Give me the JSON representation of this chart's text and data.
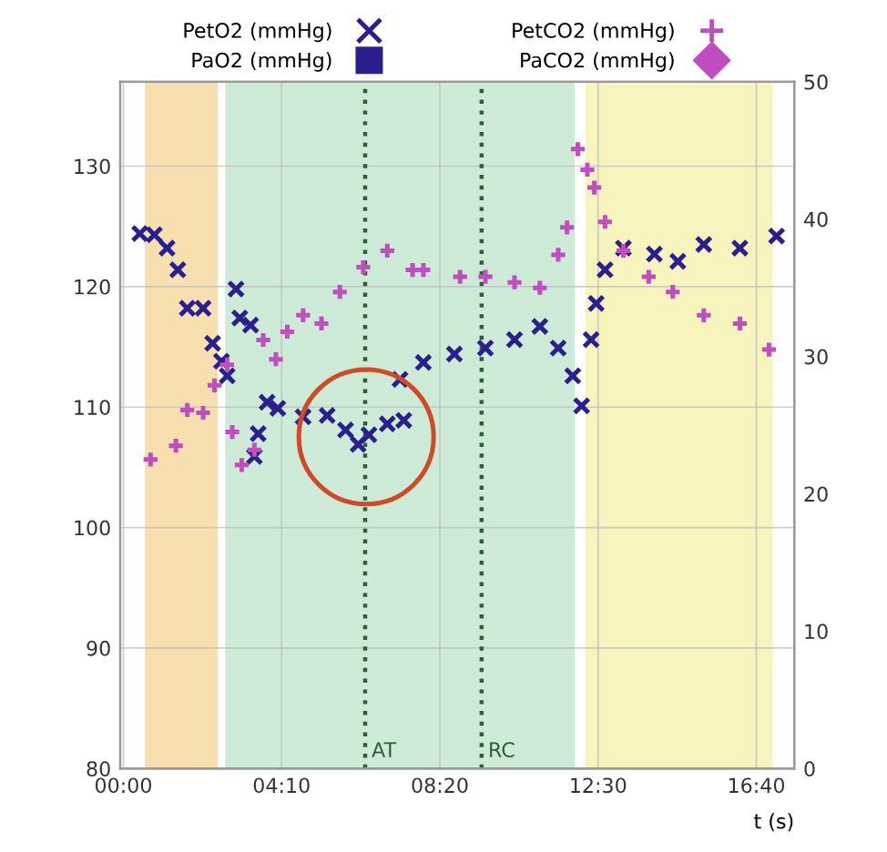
{
  "chart_data": {
    "type": "scatter",
    "xlabel": "t (s)",
    "legend": "top",
    "grid": true,
    "xlim": [
      -5,
      1060
    ],
    "xticks": [
      {
        "value": 0,
        "label": "00:00"
      },
      {
        "value": 250,
        "label": "04:10"
      },
      {
        "value": 500,
        "label": "08:20"
      },
      {
        "value": 750,
        "label": "12:30"
      },
      {
        "value": 1000,
        "label": "16:40"
      }
    ],
    "ylim": [
      80,
      137
    ],
    "yticks": [
      80,
      90,
      100,
      110,
      120,
      130
    ],
    "y2lim": [
      0,
      50
    ],
    "y2ticks": [
      0,
      10,
      20,
      30,
      40,
      50
    ],
    "series": [
      {
        "name": "PetO2 (mmHg)",
        "color": "#2a1f8f",
        "marker": "cross",
        "x": [
          26,
          49,
          69,
          86,
          101,
          126,
          141,
          155,
          164,
          178,
          184,
          201,
          207,
          213,
          227,
          244,
          284,
          322,
          351,
          371,
          388,
          417,
          443,
          437,
          474,
          523,
          572,
          618,
          658,
          687,
          710,
          724,
          739,
          747,
          761,
          790,
          839,
          876,
          917,
          974,
          1032
        ],
        "values": [
          124.4,
          124.3,
          123.2,
          121.4,
          118.2,
          118.2,
          115.3,
          113.8,
          112.6,
          119.8,
          117.4,
          116.8,
          105.9,
          107.8,
          110.4,
          109.9,
          109.2,
          109.3,
          108.1,
          106.9,
          107.7,
          108.6,
          108.9,
          112.3,
          113.7,
          114.4,
          114.9,
          115.6,
          116.7,
          114.9,
          112.6,
          110.1,
          115.6,
          118.6,
          121.4,
          123.2,
          122.7,
          122.1,
          123.5,
          123.2,
          124.2
        ]
      },
      {
        "name": "PaO2 (mmHg)",
        "color": "#2a1f8f",
        "marker": "square"
      },
      {
        "name": "PetCO2 (mmHg)",
        "color": "#c04ec0",
        "marker": "plus",
        "axis": "y2",
        "x": [
          43,
          83,
          101,
          126,
          144,
          164,
          172,
          187,
          207,
          221,
          241,
          259,
          284,
          313,
          342,
          379,
          417,
          457,
          474,
          532,
          572,
          618,
          658,
          687,
          701,
          718,
          733,
          744,
          761,
          790,
          830,
          868,
          917,
          974,
          1020
        ],
        "values": [
          22.5,
          23.5,
          26.1,
          25.9,
          27.9,
          29.4,
          24.5,
          22.1,
          23.2,
          31.2,
          29.8,
          31.8,
          33.0,
          32.4,
          34.7,
          36.5,
          37.7,
          36.3,
          36.3,
          35.8,
          35.8,
          35.4,
          35.0,
          37.4,
          39.4,
          45.1,
          43.6,
          42.3,
          39.8,
          37.7,
          35.8,
          34.7,
          33.0,
          32.4,
          30.5
        ]
      },
      {
        "name": "PaCO2 (mmHg)",
        "color": "#c04ec0",
        "marker": "diamond",
        "axis": "y2"
      }
    ],
    "bands": [
      {
        "axis": "x",
        "from": 34,
        "to": 149,
        "color": "#f8dfb0"
      },
      {
        "axis": "x",
        "from": 161,
        "to": 713,
        "color": "#cdebd6"
      },
      {
        "axis": "x",
        "from": 730,
        "to": 1026,
        "color": "#f7f4bd"
      }
    ],
    "ref_lines": [
      {
        "axis": "x",
        "value": 382,
        "label": "AT",
        "color": "#2e5e3a",
        "line_style": "dotted"
      },
      {
        "axis": "x",
        "value": 566,
        "label": "RC",
        "color": "#2e5e3a",
        "line_style": "dotted"
      }
    ]
  }
}
